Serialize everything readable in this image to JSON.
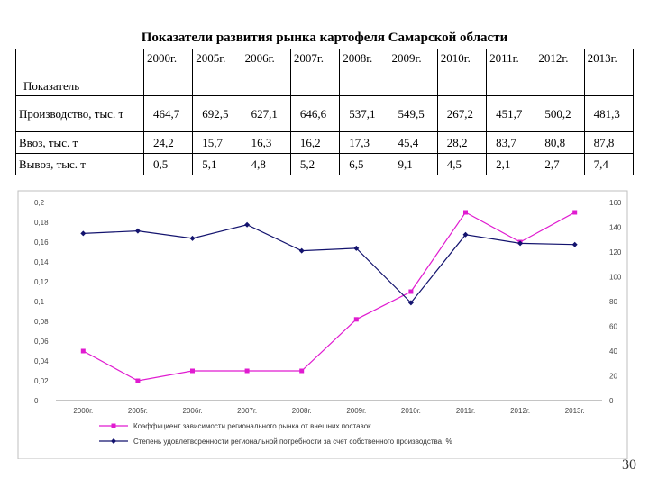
{
  "title": "Показатели развития рынка картофеля Самарской области",
  "table": {
    "header_label": "Показатель",
    "years": [
      "2000г.",
      "2005г.",
      "2006г.",
      "2007г.",
      "2008г.",
      "2009г.",
      "2010г.",
      "2011г.",
      "2012г.",
      "2013г."
    ],
    "rows": [
      {
        "label": "Производство, тыс. т",
        "values": [
          "464,7",
          "692,5",
          "627,1",
          "646,6",
          "537,1",
          "549,5",
          "267,2",
          "451,7",
          "500,2",
          "481,3"
        ]
      },
      {
        "label": "Ввоз, тыс. т",
        "values": [
          "24,2",
          "15,7",
          "16,3",
          "16,2",
          "17,3",
          "45,4",
          "28,2",
          "83,7",
          "80,8",
          "87,8"
        ]
      },
      {
        "label": "Вывоз, тыс. т",
        "values": [
          "0,5",
          "5,1",
          "4,8",
          "5,2",
          "6,5",
          "9,1",
          "4,5",
          "2,1",
          "2,7",
          "7,4"
        ]
      }
    ]
  },
  "chart_data": {
    "type": "line",
    "categories": [
      "2000г.",
      "2005г.",
      "2006г.",
      "2007г.",
      "2008г.",
      "2009г.",
      "2010г.",
      "2011г.",
      "2012г.",
      "2013г."
    ],
    "y_left": {
      "ticks": [
        "0",
        "0,02",
        "0,04",
        "0,06",
        "0,08",
        "0,1",
        "0,12",
        "0,14",
        "0,16",
        "0,18",
        "0,2"
      ],
      "ylim": [
        0,
        0.2
      ]
    },
    "y_right": {
      "ticks": [
        "0",
        "20",
        "40",
        "60",
        "80",
        "100",
        "120",
        "140",
        "160"
      ],
      "ylim": [
        0,
        160
      ]
    },
    "series": [
      {
        "name": "Коэффициент зависимости регионального рынка от внешних поставок",
        "axis": "left",
        "color": "#e01bd0",
        "marker": "square",
        "values": [
          0.05,
          0.02,
          0.03,
          0.03,
          0.03,
          0.082,
          0.11,
          0.19,
          0.16,
          0.19
        ]
      },
      {
        "name": "Степень удовлетворенности региональной потребности за счет собственного производства, %",
        "axis": "right",
        "color": "#13136e",
        "marker": "diamond",
        "values": [
          135,
          137,
          131,
          142,
          121,
          123,
          79,
          134,
          127,
          126
        ]
      }
    ],
    "grid": false,
    "legend": "bottom"
  },
  "page_number": "30"
}
